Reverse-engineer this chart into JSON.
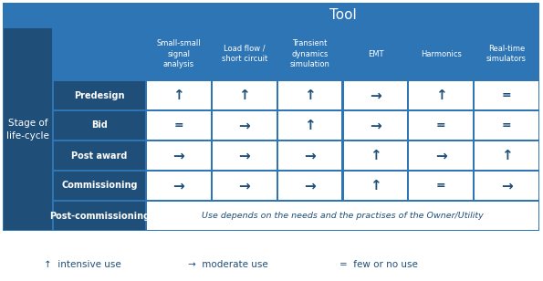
{
  "title": "Tool",
  "col_headers": [
    "Small-small\nsignal\nanalysis",
    "Load flow /\nshort circuit",
    "Transient\ndynamics\nsimulation",
    "EMT",
    "Harmonics",
    "Real-time\nsimulators"
  ],
  "row_headers": [
    "Predesign",
    "Bid",
    "Post award",
    "Commissioning",
    "Post-commissioning"
  ],
  "row_label_main": "Stage of\nlife-cycle",
  "cell_data": [
    [
      "↑",
      "↑",
      "↑",
      "→",
      "↑",
      "="
    ],
    [
      "=",
      "→",
      "↑",
      "→",
      "=",
      "="
    ],
    [
      "→",
      "→",
      "→",
      "↑",
      "→",
      "↑"
    ],
    [
      "→",
      "→",
      "→",
      "↑",
      "=",
      "→"
    ],
    [
      "Use depends on the needs and the practises of the Owner/Utility",
      "",
      "",
      "",
      "",
      ""
    ]
  ],
  "legend": [
    "↑  intensive use",
    "→  moderate use",
    "=  few or no use"
  ],
  "dark_blue": "#1F4E79",
  "medium_blue": "#2E75B6",
  "white": "#FFFFFF",
  "cell_text_color": "#1F4E79",
  "legend_text_color": "#1F4E79"
}
